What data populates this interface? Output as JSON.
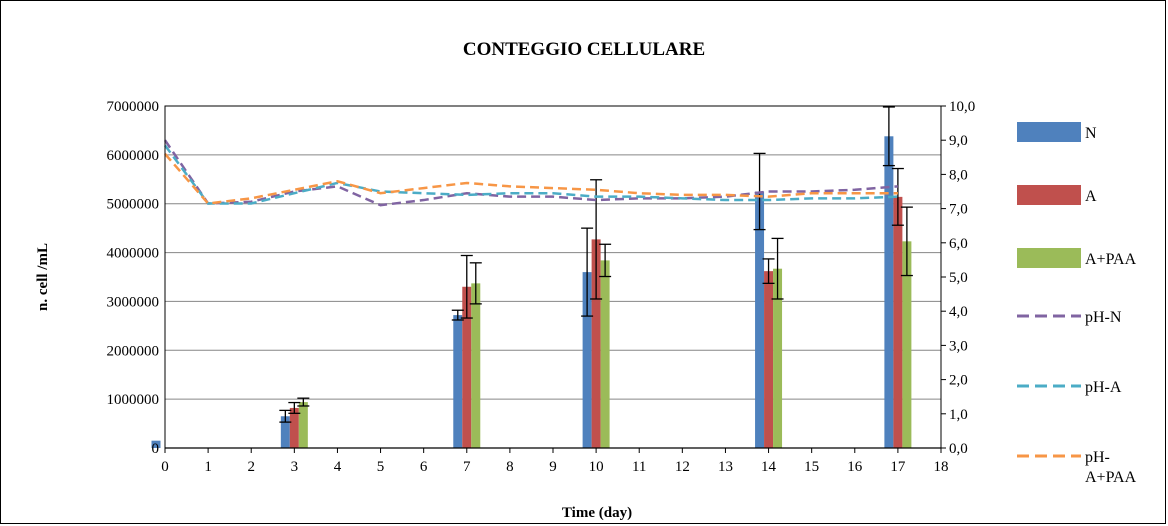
{
  "chart_data": {
    "type": "bar",
    "title": "CONTEGGIO CELLULARE",
    "xlabel": "Time (day)",
    "ylabel": "n. cell /mL",
    "xlim": [
      0,
      18
    ],
    "x_ticks": [
      "0",
      "1",
      "2",
      "3",
      "4",
      "5",
      "6",
      "7",
      "8",
      "9",
      "10",
      "11",
      "12",
      "13",
      "14",
      "15",
      "16",
      "17",
      "18"
    ],
    "ylim": [
      0,
      7000000
    ],
    "y_ticks": [
      "0",
      "1000000",
      "2000000",
      "3000000",
      "4000000",
      "5000000",
      "6000000",
      "7000000"
    ],
    "y2lim": [
      0,
      10
    ],
    "y2_ticks": [
      "0,0",
      "1,0",
      "2,0",
      "3,0",
      "4,0",
      "5,0",
      "6,0",
      "7,0",
      "8,0",
      "9,0",
      "10,0"
    ],
    "grid": true,
    "legend_position": "right",
    "bar_series": [
      {
        "name": "N",
        "color": "#4f81bd",
        "x": [
          0,
          3,
          7,
          10,
          14,
          17
        ],
        "values": [
          150000,
          650000,
          2720000,
          3600000,
          5250000,
          6380000
        ],
        "err": [
          0,
          120000,
          100000,
          900000,
          780000,
          600000
        ]
      },
      {
        "name": "A",
        "color": "#c0504d",
        "x": [
          0,
          3,
          7,
          10,
          14,
          17
        ],
        "values": [
          0,
          820000,
          3300000,
          4270000,
          3620000,
          5140000
        ],
        "err": [
          0,
          110000,
          640000,
          1220000,
          250000,
          580000
        ]
      },
      {
        "name": "A+PAA",
        "color": "#9bbb59",
        "x": [
          0,
          3,
          7,
          10,
          14,
          17
        ],
        "values": [
          0,
          940000,
          3370000,
          3840000,
          3670000,
          4230000
        ],
        "err": [
          0,
          80000,
          420000,
          330000,
          620000,
          700000
        ]
      }
    ],
    "line_series": [
      {
        "name": "pH-N",
        "color": "#8064a2",
        "x": [
          0,
          1,
          2,
          3,
          4,
          5,
          6,
          7,
          8,
          9,
          10,
          11,
          12,
          13,
          14,
          15,
          16,
          17
        ],
        "values": [
          9.0,
          7.15,
          7.2,
          7.5,
          7.65,
          7.1,
          7.25,
          7.45,
          7.35,
          7.35,
          7.25,
          7.3,
          7.3,
          7.35,
          7.5,
          7.5,
          7.55,
          7.65
        ]
      },
      {
        "name": "pH-A",
        "color": "#4bacc6",
        "x": [
          0,
          1,
          2,
          3,
          4,
          5,
          6,
          7,
          8,
          9,
          10,
          11,
          12,
          13,
          14,
          15,
          16,
          17
        ],
        "values": [
          8.85,
          7.15,
          7.15,
          7.45,
          7.75,
          7.5,
          7.45,
          7.4,
          7.45,
          7.45,
          7.35,
          7.35,
          7.3,
          7.25,
          7.25,
          7.3,
          7.3,
          7.35
        ]
      },
      {
        "name": "pH-A+PAA",
        "color": "#f79646",
        "x": [
          0,
          1,
          2,
          3,
          4,
          5,
          6,
          7,
          8,
          9,
          10,
          11,
          12,
          13,
          14,
          15,
          16,
          17
        ],
        "values": [
          8.6,
          7.15,
          7.3,
          7.55,
          7.8,
          7.45,
          7.6,
          7.75,
          7.65,
          7.6,
          7.55,
          7.45,
          7.4,
          7.4,
          7.35,
          7.45,
          7.45,
          7.45
        ]
      }
    ]
  }
}
